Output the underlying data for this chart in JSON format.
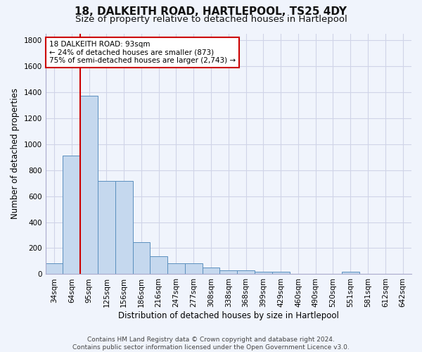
{
  "title1": "18, DALKEITH ROAD, HARTLEPOOL, TS25 4DY",
  "title2": "Size of property relative to detached houses in Hartlepool",
  "xlabel": "Distribution of detached houses by size in Hartlepool",
  "ylabel": "Number of detached properties",
  "categories": [
    "34sqm",
    "64sqm",
    "95sqm",
    "125sqm",
    "156sqm",
    "186sqm",
    "216sqm",
    "247sqm",
    "277sqm",
    "308sqm",
    "338sqm",
    "368sqm",
    "399sqm",
    "429sqm",
    "460sqm",
    "490sqm",
    "520sqm",
    "551sqm",
    "581sqm",
    "612sqm",
    "642sqm"
  ],
  "values": [
    82,
    910,
    1370,
    715,
    715,
    248,
    140,
    86,
    86,
    50,
    30,
    30,
    18,
    18,
    0,
    0,
    0,
    18,
    0,
    0,
    0
  ],
  "bar_color": "#c5d8ee",
  "bar_edge_color": "#5b8fbe",
  "grid_color": "#d0d4e8",
  "vline_color": "#cc0000",
  "vline_x_index": 2.0,
  "annotation_line0": "18 DALKEITH ROAD: 93sqm",
  "annotation_line1": "← 24% of detached houses are smaller (873)",
  "annotation_line2": "75% of semi-detached houses are larger (2,743) →",
  "annotation_box_color": "#ffffff",
  "annotation_box_edge": "#cc0000",
  "footer1": "Contains HM Land Registry data © Crown copyright and database right 2024.",
  "footer2": "Contains public sector information licensed under the Open Government Licence v3.0.",
  "ylim": [
    0,
    1850
  ],
  "yticks": [
    0,
    200,
    400,
    600,
    800,
    1000,
    1200,
    1400,
    1600,
    1800
  ],
  "title1_fontsize": 11,
  "title2_fontsize": 9.5,
  "axis_label_fontsize": 8.5,
  "tick_fontsize": 7.5,
  "footer_fontsize": 6.5,
  "bar_width": 1.0,
  "bg_color": "#f0f4fc"
}
